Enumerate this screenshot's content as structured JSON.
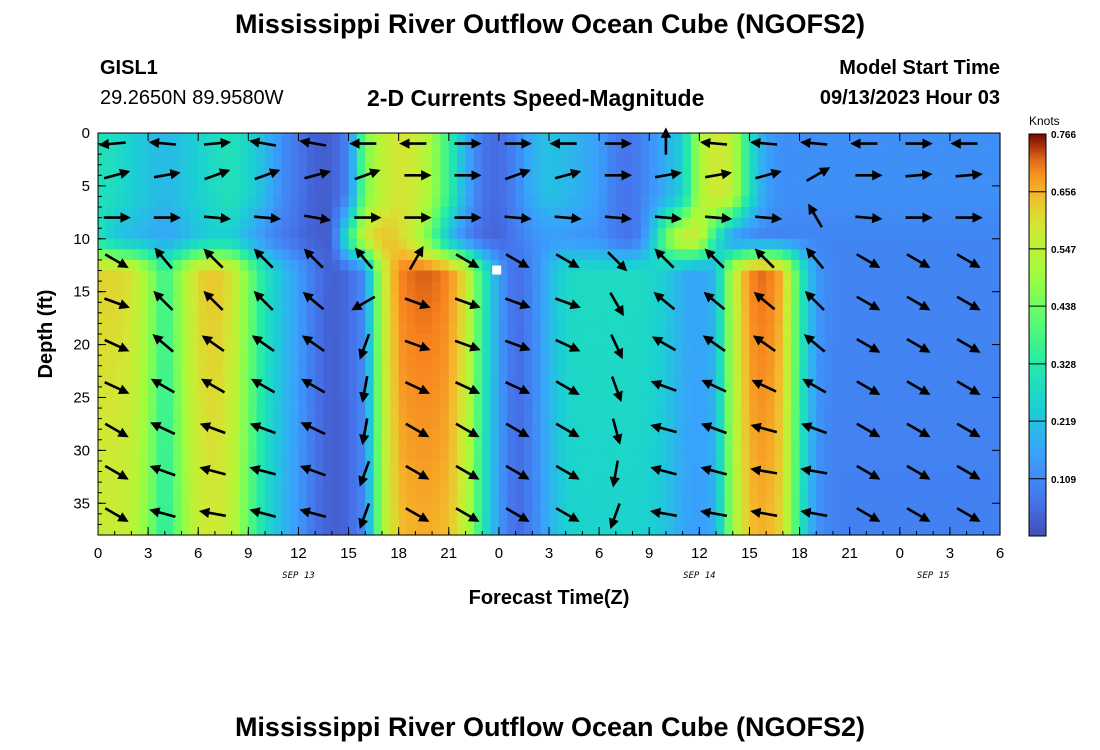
{
  "header": {
    "title": "Mississippi River Outflow Ocean Cube (NGOFS2)",
    "station_id": "GISL1",
    "station_coords": "29.2650N  89.9580W",
    "subtitle": "2-D Currents Speed-Magnitude",
    "model_start_label": "Model Start Time",
    "model_start_value": "09/13/2023 Hour 03"
  },
  "footer": {
    "title": "Mississippi River Outflow Ocean Cube (NGOFS2)"
  },
  "chart_data": {
    "type": "heatmap",
    "xlabel": "Forecast Time(Z)",
    "ylabel": "Depth (ft)",
    "x_unit": "hours since SEP 13 00Z",
    "xlim": [
      0,
      54
    ],
    "ylim": [
      38,
      0
    ],
    "x_ticks": [
      0,
      3,
      6,
      9,
      12,
      15,
      18,
      21,
      24,
      27,
      30,
      33,
      36,
      39,
      42,
      45,
      48,
      51,
      54
    ],
    "x_tick_labels": [
      "0",
      "3",
      "6",
      "9",
      "12",
      "15",
      "18",
      "21",
      "0",
      "3",
      "6",
      "9",
      "12",
      "15",
      "18",
      "21",
      "0",
      "3",
      "6"
    ],
    "y_ticks": [
      0,
      5,
      10,
      15,
      20,
      25,
      30,
      35
    ],
    "y_tick_labels": [
      "0",
      "5",
      "10",
      "15",
      "20",
      "25",
      "30",
      "35"
    ],
    "date_labels": [
      {
        "text": "SEP 13",
        "x": 12
      },
      {
        "text": "SEP 14",
        "x": 36
      },
      {
        "text": "SEP 15",
        "x": 50
      }
    ],
    "colorbar": {
      "title": "Knots",
      "min": 0,
      "max": 0.766,
      "tick_values": [
        0.109,
        0.219,
        0.328,
        0.438,
        0.547,
        0.656,
        0.766
      ],
      "tick_labels": [
        "0.109",
        "0.219",
        "0.328",
        "0.438",
        "0.547",
        "0.656",
        "0.766"
      ],
      "colormap": "turbo"
    },
    "speed_time_profile": {
      "hours": [
        0,
        1,
        2,
        3,
        4,
        5,
        6,
        7,
        8,
        9,
        10,
        11,
        12,
        13,
        14,
        15,
        16,
        17,
        18,
        19,
        20,
        21,
        22,
        23,
        24,
        25,
        26,
        27,
        28,
        29,
        30,
        31,
        32,
        33,
        34,
        35,
        36,
        37,
        38,
        39,
        40,
        41,
        42,
        43,
        44,
        45,
        46,
        47,
        48,
        49,
        50,
        51,
        52,
        53,
        54
      ],
      "deep_speed": [
        0.62,
        0.62,
        0.6,
        0.5,
        0.35,
        0.5,
        0.62,
        0.64,
        0.6,
        0.45,
        0.3,
        0.22,
        0.15,
        0.07,
        0.03,
        0.05,
        0.12,
        0.55,
        0.7,
        0.72,
        0.72,
        0.7,
        0.6,
        0.35,
        0.15,
        0.05,
        0.1,
        0.2,
        0.27,
        0.28,
        0.28,
        0.28,
        0.28,
        0.27,
        0.24,
        0.18,
        0.16,
        0.2,
        0.55,
        0.7,
        0.72,
        0.66,
        0.35,
        0.14,
        0.1,
        0.1,
        0.1,
        0.1,
        0.1,
        0.1,
        0.1,
        0.1,
        0.1,
        0.1,
        0.1
      ],
      "surface_speed": [
        0.3,
        0.28,
        0.25,
        0.22,
        0.2,
        0.22,
        0.25,
        0.28,
        0.3,
        0.26,
        0.2,
        0.12,
        0.07,
        0.03,
        0.03,
        0.1,
        0.45,
        0.55,
        0.6,
        0.58,
        0.5,
        0.35,
        0.18,
        0.07,
        0.05,
        0.1,
        0.18,
        0.22,
        0.2,
        0.18,
        0.15,
        0.08,
        0.07,
        0.12,
        0.18,
        0.25,
        0.52,
        0.6,
        0.55,
        0.3,
        0.15,
        0.12,
        0.12,
        0.12,
        0.12,
        0.12,
        0.12,
        0.12,
        0.12,
        0.12,
        0.12,
        0.12,
        0.12,
        0.12,
        0.12
      ],
      "mid_speed": [
        0.3,
        0.22,
        0.2,
        0.18,
        0.16,
        0.18,
        0.22,
        0.25,
        0.24,
        0.18,
        0.12,
        0.08,
        0.05,
        0.03,
        0.03,
        0.35,
        0.6,
        0.65,
        0.62,
        0.55,
        0.4,
        0.2,
        0.1,
        0.05,
        0.04,
        0.08,
        0.12,
        0.14,
        0.14,
        0.13,
        0.12,
        0.08,
        0.06,
        0.18,
        0.45,
        0.6,
        0.58,
        0.3,
        0.12,
        0.1,
        0.1,
        0.1,
        0.1,
        0.1,
        0.1,
        0.1,
        0.1,
        0.1,
        0.1,
        0.1,
        0.1,
        0.1,
        0.1,
        0.1,
        0.1
      ]
    },
    "vector_rows_depth": [
      1,
      4,
      8,
      12,
      16,
      20,
      24,
      28,
      32,
      36
    ],
    "vector_cols_hours": [
      1,
      4,
      7,
      10,
      13,
      16,
      19,
      22,
      25,
      28,
      31,
      34,
      37,
      40,
      43,
      46,
      49,
      52
    ],
    "vector_angles_deg": [
      [
        -175,
        175,
        5,
        170,
        170,
        180,
        180,
        0,
        0,
        180,
        0,
        90,
        175,
        175,
        175,
        180,
        0,
        180
      ],
      [
        15,
        10,
        20,
        20,
        15,
        20,
        0,
        0,
        20,
        15,
        0,
        10,
        10,
        15,
        30,
        0,
        5,
        5
      ],
      [
        0,
        0,
        -5,
        -5,
        -10,
        0,
        0,
        0,
        -5,
        -5,
        -5,
        -5,
        -5,
        -5,
        120,
        -5,
        0,
        0
      ],
      [
        -30,
        130,
        135,
        135,
        135,
        130,
        60,
        -30,
        -30,
        -30,
        -45,
        135,
        135,
        135,
        130,
        -30,
        -30,
        -30
      ],
      [
        -20,
        135,
        135,
        135,
        140,
        -150,
        -20,
        -20,
        -20,
        -20,
        -60,
        140,
        140,
        140,
        135,
        -30,
        -30,
        -30
      ],
      [
        -25,
        140,
        145,
        145,
        145,
        -110,
        -20,
        -20,
        -20,
        -25,
        -65,
        150,
        145,
        145,
        140,
        -30,
        -30,
        -30
      ],
      [
        -25,
        150,
        150,
        150,
        150,
        -100,
        -25,
        -25,
        -25,
        -30,
        -70,
        160,
        155,
        155,
        150,
        -30,
        -30,
        -30
      ],
      [
        -30,
        155,
        160,
        160,
        155,
        -100,
        -30,
        -30,
        -30,
        -30,
        -75,
        165,
        160,
        165,
        160,
        -30,
        -30,
        -30
      ],
      [
        -30,
        160,
        165,
        165,
        160,
        -110,
        -30,
        -30,
        -30,
        -30,
        -100,
        165,
        165,
        170,
        170,
        -30,
        -30,
        -30
      ],
      [
        -30,
        165,
        170,
        165,
        165,
        -110,
        -30,
        -30,
        -30,
        -30,
        -110,
        170,
        170,
        170,
        170,
        -30,
        -30,
        -30
      ]
    ]
  }
}
